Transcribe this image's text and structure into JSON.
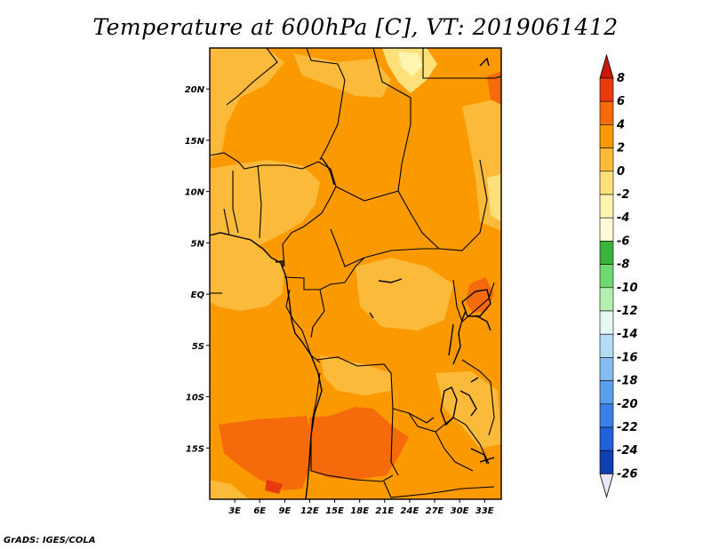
{
  "title": "Temperature at 600hPa [C], VT: 2019061412",
  "credit": "GrADS: IGES/COLA",
  "map": {
    "lon_range": [
      0,
      35
    ],
    "lat_range": [
      -20,
      24
    ],
    "lon_ticks": [
      {
        "value": 3,
        "label": "3E"
      },
      {
        "value": 6,
        "label": "6E"
      },
      {
        "value": 9,
        "label": "9E"
      },
      {
        "value": 12,
        "label": "12E"
      },
      {
        "value": 15,
        "label": "15E"
      },
      {
        "value": 18,
        "label": "18E"
      },
      {
        "value": 21,
        "label": "21E"
      },
      {
        "value": 24,
        "label": "24E"
      },
      {
        "value": 27,
        "label": "27E"
      },
      {
        "value": 30,
        "label": "30E"
      },
      {
        "value": 33,
        "label": "33E"
      }
    ],
    "lat_ticks": [
      {
        "value": 20,
        "label": "20N"
      },
      {
        "value": 15,
        "label": "15N"
      },
      {
        "value": 10,
        "label": "10N"
      },
      {
        "value": 5,
        "label": "5N"
      },
      {
        "value": 0,
        "label": "EQ"
      },
      {
        "value": -5,
        "label": "5S"
      },
      {
        "value": -10,
        "label": "10S"
      },
      {
        "value": -15,
        "label": "15S"
      }
    ]
  },
  "colorbar": {
    "levels": [
      "8",
      "6",
      "4",
      "2",
      "0",
      "-2",
      "-4",
      "-6",
      "-8",
      "-10",
      "-12",
      "-14",
      "-16",
      "-18",
      "-20",
      "-22",
      "-24",
      "-26"
    ],
    "colors": [
      "#e83a0c",
      "#f56a0a",
      "#fa9a00",
      "#fbba3a",
      "#fde07a",
      "#fff5b0",
      "#fffbd8",
      "#39b339",
      "#6fd86f",
      "#b4f0b0",
      "#e6f8f6",
      "#b5dcf5",
      "#86bdf0",
      "#5a9fec",
      "#3a80e6",
      "#2060d8",
      "#1040b0",
      "#0a1a80"
    ],
    "top_color": "#c81a0a",
    "bottom_color": "#e8e8f8"
  }
}
